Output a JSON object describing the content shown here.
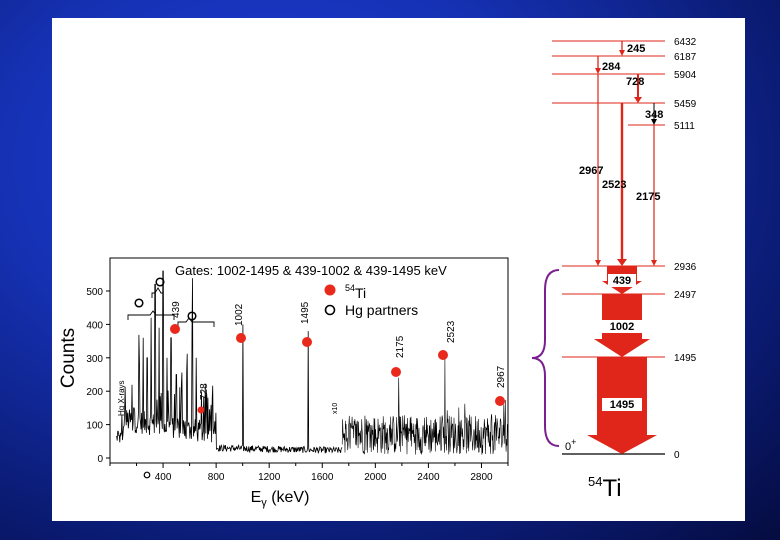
{
  "spectrum": {
    "gate_text": "Gates: 1002-1495 & 439-1002 & 439-1495  keV",
    "legend_ti": {
      "symbol": "54",
      "text": "Ti"
    },
    "legend_hg": "Hg partners",
    "ylabel": "Counts",
    "xlabel_main": "E",
    "xlabel_sub": "γ",
    "xlabel_unit": " (keV)",
    "hg_xrays": "Hg X-rays",
    "scale_note": "x10",
    "yticks": [
      "0",
      "100",
      "200",
      "300",
      "400",
      "500"
    ],
    "xticks": [
      "400",
      "800",
      "1200",
      "1600",
      "2000",
      "2400",
      "2800"
    ],
    "peaks": [
      {
        "label": "439",
        "energy": 439
      },
      {
        "label": "728",
        "energy": 728
      },
      {
        "label": "1002",
        "energy": 1002
      },
      {
        "label": "1495",
        "energy": 1495
      },
      {
        "label": "2175",
        "energy": 2175
      },
      {
        "label": "2523",
        "energy": 2523
      },
      {
        "label": "2967",
        "energy": 2967
      }
    ]
  },
  "level_scheme": {
    "nucleus_mass": "54",
    "nucleus_symbol": "Ti",
    "ground_spin": "0",
    "ground_parity": "+",
    "levels": [
      {
        "energy": "6432"
      },
      {
        "energy": "6187"
      },
      {
        "energy": "5904"
      },
      {
        "energy": "5459"
      },
      {
        "energy": "5111"
      },
      {
        "energy": "2936"
      },
      {
        "energy": "2497"
      },
      {
        "energy": "1495"
      },
      {
        "energy": "0"
      }
    ],
    "transitions": [
      {
        "label": "245"
      },
      {
        "label": "284"
      },
      {
        "label": "728"
      },
      {
        "label": "348"
      },
      {
        "label": "2967"
      },
      {
        "label": "2523"
      },
      {
        "label": "2175"
      },
      {
        "label": "439"
      },
      {
        "label": "1002"
      },
      {
        "label": "1495"
      }
    ]
  },
  "colors": {
    "ti_marker": "#e8291c",
    "transition": "#e0261a",
    "brace": "#7a1f8f"
  }
}
